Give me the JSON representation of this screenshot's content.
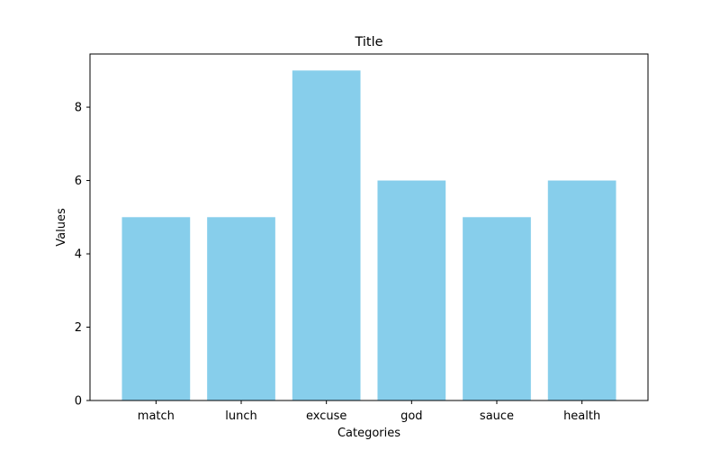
{
  "chart_data": {
    "type": "bar",
    "title": "Title",
    "xlabel": "Categories",
    "ylabel": "Values",
    "categories": [
      "match",
      "lunch",
      "excuse",
      "god",
      "sauce",
      "health"
    ],
    "values": [
      5,
      5,
      9,
      6,
      5,
      6
    ],
    "yticks": [
      0,
      2,
      4,
      6,
      8
    ],
    "ylim": [
      0,
      9.45
    ],
    "bar_color": "#87ceeb",
    "grid": false,
    "legend": "none"
  }
}
